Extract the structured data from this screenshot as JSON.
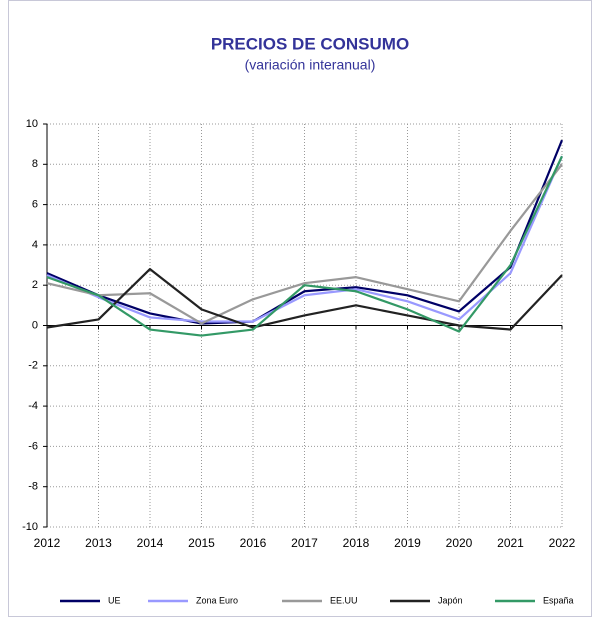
{
  "chart_data": {
    "type": "line",
    "title": "PRECIOS DE CONSUMO",
    "subtitle": "(variación interanual)",
    "categories": [
      "2012",
      "2013",
      "2014",
      "2015",
      "2016",
      "2017",
      "2018",
      "2019",
      "2020",
      "2021",
      "2022"
    ],
    "series": [
      {
        "name": "UE",
        "color": "#000066",
        "values": [
          2.6,
          1.5,
          0.6,
          0.1,
          0.2,
          1.7,
          1.9,
          1.5,
          0.7,
          2.9,
          9.2
        ]
      },
      {
        "name": "Zona Euro",
        "color": "#9999ff",
        "values": [
          2.5,
          1.4,
          0.4,
          0.2,
          0.2,
          1.5,
          1.8,
          1.2,
          0.3,
          2.6,
          8.4
        ]
      },
      {
        "name": "EE.UU",
        "color": "#999999",
        "values": [
          2.1,
          1.5,
          1.6,
          0.1,
          1.3,
          2.1,
          2.4,
          1.8,
          1.2,
          4.7,
          8.0
        ]
      },
      {
        "name": "Japón",
        "color": "#222222",
        "values": [
          -0.1,
          0.3,
          2.8,
          0.8,
          -0.1,
          0.5,
          1.0,
          0.5,
          0.0,
          -0.2,
          2.5
        ]
      },
      {
        "name": "España",
        "color": "#339966",
        "values": [
          2.4,
          1.5,
          -0.2,
          -0.5,
          -0.2,
          2.0,
          1.7,
          0.8,
          -0.3,
          3.0,
          8.4
        ]
      }
    ],
    "ylim": [
      -10,
      10
    ],
    "yticks": [
      -10,
      -8,
      -6,
      -4,
      -2,
      0,
      2,
      4,
      6,
      8,
      10
    ],
    "grid": true,
    "legend": "bottom"
  }
}
